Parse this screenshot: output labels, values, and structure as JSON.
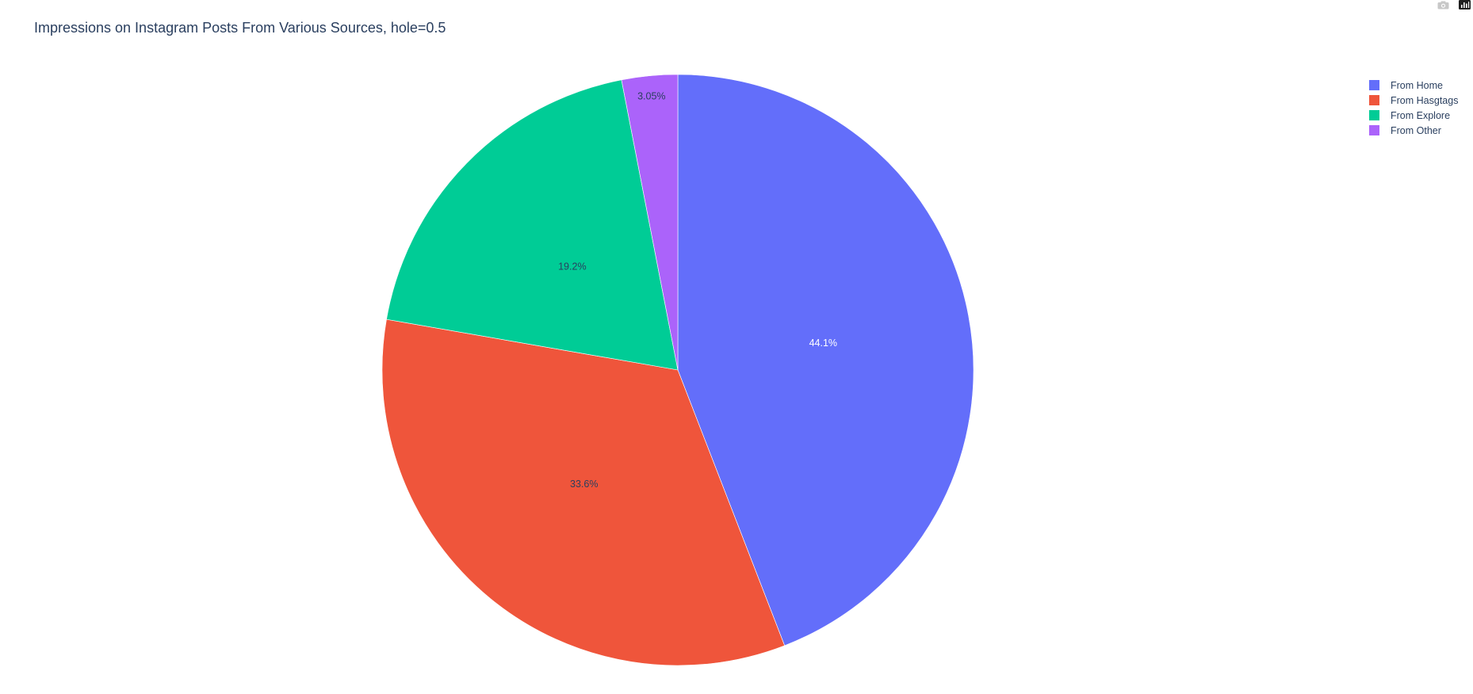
{
  "chart_data": {
    "type": "pie",
    "title": "Impressions on Instagram Posts From Various Sources, hole=0.5",
    "labels": [
      "From Home",
      "From Hasgtags",
      "From Explore",
      "From Other"
    ],
    "values": [
      44.1,
      33.6,
      19.2,
      3.05
    ],
    "percent_labels": [
      "44.1%",
      "33.6%",
      "19.2%",
      "3.05%"
    ],
    "colors": [
      "#636efa",
      "#ef553b",
      "#00cc96",
      "#ab63fa"
    ],
    "label_colors": [
      "#ffffff",
      "#2a3f5f",
      "#2a3f5f",
      "#2a3f5f"
    ],
    "direction": "clockwise",
    "start": "top",
    "legend_position": "top-right"
  },
  "legend": {
    "items": [
      {
        "label": "From Home",
        "color": "#636efa"
      },
      {
        "label": "From Hasgtags",
        "color": "#ef553b"
      },
      {
        "label": "From Explore",
        "color": "#00cc96"
      },
      {
        "label": "From Other",
        "color": "#ab63fa"
      }
    ]
  },
  "modebar": {
    "icons": [
      "camera-icon",
      "plotly-logo-icon"
    ]
  }
}
